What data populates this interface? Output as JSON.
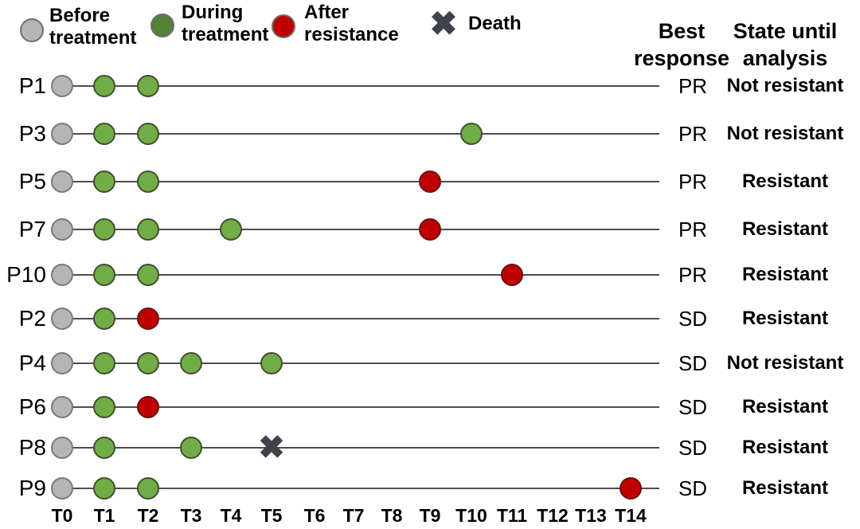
{
  "legend": {
    "items": [
      {
        "name": "before-treatment",
        "label": "Before treatment",
        "marker": "circle",
        "color": "#b5b5b5"
      },
      {
        "name": "during-treatment",
        "label": "During treatment",
        "marker": "circle",
        "color": "#538135"
      },
      {
        "name": "after-resistance",
        "label": "After resistance",
        "marker": "circle",
        "color": "#c00000"
      },
      {
        "name": "death",
        "label": "Death",
        "marker": "cross",
        "color": "#3d424b"
      }
    ]
  },
  "headers": {
    "best_response": "Best response",
    "state": "State until analysis"
  },
  "chart_data": {
    "type": "timeline",
    "title": "",
    "x_ticks": [
      "T0",
      "T1",
      "T2",
      "T3",
      "T4",
      "T5",
      "T6",
      "T7",
      "T8",
      "T9",
      "T10",
      "T11",
      "T12",
      "T13",
      "T14"
    ],
    "legend_position": "top",
    "grid": false,
    "marker_colors": {
      "before": "#b5b5b5",
      "during": "#70ad47",
      "resistance": "#c00000",
      "death": "#3d424b"
    },
    "patients": [
      {
        "id": "P1",
        "events": [
          {
            "t": 0,
            "type": "before"
          },
          {
            "t": 1,
            "type": "during"
          },
          {
            "t": 2,
            "type": "during"
          }
        ],
        "best_response": "PR",
        "state": "Not resistant"
      },
      {
        "id": "P3",
        "events": [
          {
            "t": 0,
            "type": "before"
          },
          {
            "t": 1,
            "type": "during"
          },
          {
            "t": 2,
            "type": "during"
          },
          {
            "t": 10,
            "type": "during"
          }
        ],
        "best_response": "PR",
        "state": "Not resistant"
      },
      {
        "id": "P5",
        "events": [
          {
            "t": 0,
            "type": "before"
          },
          {
            "t": 1,
            "type": "during"
          },
          {
            "t": 2,
            "type": "during"
          },
          {
            "t": 9,
            "type": "resistance"
          }
        ],
        "best_response": "PR",
        "state": "Resistant"
      },
      {
        "id": "P7",
        "events": [
          {
            "t": 0,
            "type": "before"
          },
          {
            "t": 1,
            "type": "during"
          },
          {
            "t": 2,
            "type": "during"
          },
          {
            "t": 4,
            "type": "during"
          },
          {
            "t": 9,
            "type": "resistance"
          }
        ],
        "best_response": "PR",
        "state": "Resistant"
      },
      {
        "id": "P10",
        "events": [
          {
            "t": 0,
            "type": "before"
          },
          {
            "t": 1,
            "type": "during"
          },
          {
            "t": 2,
            "type": "during"
          },
          {
            "t": 11,
            "type": "resistance"
          }
        ],
        "best_response": "PR",
        "state": "Resistant"
      },
      {
        "id": "P2",
        "events": [
          {
            "t": 0,
            "type": "before"
          },
          {
            "t": 1,
            "type": "during"
          },
          {
            "t": 2,
            "type": "resistance"
          }
        ],
        "best_response": "SD",
        "state": "Resistant"
      },
      {
        "id": "P4",
        "events": [
          {
            "t": 0,
            "type": "before"
          },
          {
            "t": 1,
            "type": "during"
          },
          {
            "t": 2,
            "type": "during"
          },
          {
            "t": 3,
            "type": "during"
          },
          {
            "t": 5,
            "type": "during"
          }
        ],
        "best_response": "SD",
        "state": "Not resistant"
      },
      {
        "id": "P6",
        "events": [
          {
            "t": 0,
            "type": "before"
          },
          {
            "t": 1,
            "type": "during"
          },
          {
            "t": 2,
            "type": "resistance"
          }
        ],
        "best_response": "SD",
        "state": "Resistant"
      },
      {
        "id": "P8",
        "events": [
          {
            "t": 0,
            "type": "before"
          },
          {
            "t": 1,
            "type": "during"
          },
          {
            "t": 3,
            "type": "during"
          },
          {
            "t": 5,
            "type": "death"
          }
        ],
        "best_response": "SD",
        "state": "Resistant"
      },
      {
        "id": "P9",
        "events": [
          {
            "t": 0,
            "type": "before"
          },
          {
            "t": 1,
            "type": "during"
          },
          {
            "t": 2,
            "type": "during"
          },
          {
            "t": 14,
            "type": "resistance"
          }
        ],
        "best_response": "SD",
        "state": "Resistant"
      }
    ],
    "death_glyph": "✖"
  }
}
